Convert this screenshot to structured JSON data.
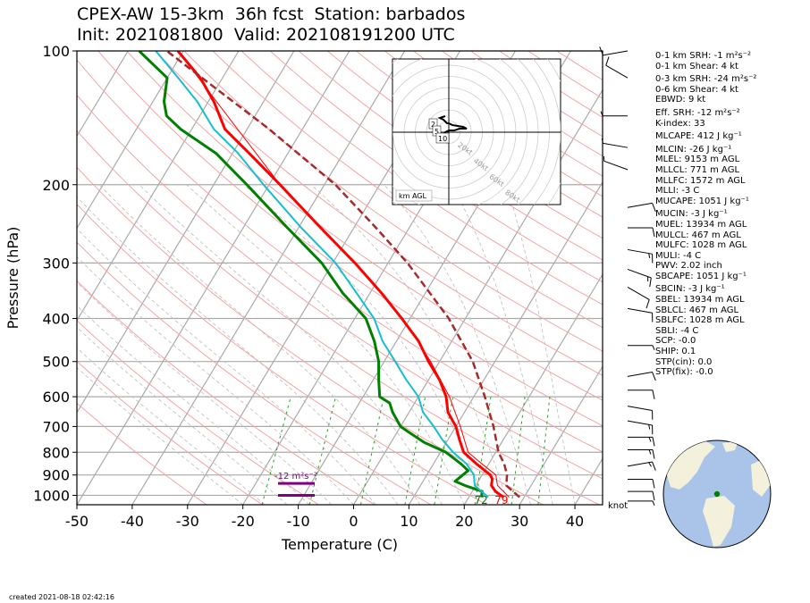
{
  "title_line1": "CPEX-AW 15-3km  36h fcst  Station: barbados",
  "title_line2": "Init: 2021081800  Valid: 202108191200 UTC",
  "created": "created 2021-08-18 02:42:16",
  "indices": [
    {
      "label": "0-1 km SRH: -1 m²s⁻²",
      "gap_before": false
    },
    {
      "label": "0-1 km Shear: 4 kt",
      "gap_before": false
    },
    {
      "label": "0-3 km SRH: -24 m²s⁻²",
      "gap_before": true
    },
    {
      "label": "0-6 km Shear: 4 kt",
      "gap_before": false
    },
    {
      "label": "EBWD: 9 kt",
      "gap_before": false
    },
    {
      "label": "Eff. SRH: -12 m²s⁻²",
      "gap_before": true
    },
    {
      "label": "K-index: 33",
      "gap_before": false
    },
    {
      "label": "MLCAPE: 412 J kg⁻¹",
      "gap_before": true
    },
    {
      "label": "MLCIN: -26 J kg⁻¹",
      "gap_before": true
    },
    {
      "label": "MLEL: 9153 m AGL",
      "gap_before": false
    },
    {
      "label": "MLLCL: 771 m AGL",
      "gap_before": false
    },
    {
      "label": "MLLFC: 1572 m AGL",
      "gap_before": false
    },
    {
      "label": "MLLI: -3 C",
      "gap_before": false
    },
    {
      "label": "MUCAPE: 1051 J kg⁻¹",
      "gap_before": false
    },
    {
      "label": "MUCIN: -3 J kg⁻¹",
      "gap_before": true
    },
    {
      "label": "MUEL: 13934 m AGL",
      "gap_before": false
    },
    {
      "label": "MULCL: 467 m AGL",
      "gap_before": false
    },
    {
      "label": "MULFC: 1028 m AGL",
      "gap_before": false
    },
    {
      "label": "MULI: -4 C",
      "gap_before": false
    },
    {
      "label": "PWV: 2.02 inch",
      "gap_before": false
    },
    {
      "label": "SBCAPE: 1051 J kg⁻¹",
      "gap_before": false
    },
    {
      "label": "SBCIN: -3 J kg⁻¹",
      "gap_before": true
    },
    {
      "label": "SBEL: 13934 m AGL",
      "gap_before": false
    },
    {
      "label": "SBLCL: 467 m AGL",
      "gap_before": false
    },
    {
      "label": "SBLFC: 1028 m AGL",
      "gap_before": false
    },
    {
      "label": "SBLI: -4 C",
      "gap_before": false
    },
    {
      "label": "SCP: -0.0",
      "gap_before": false
    },
    {
      "label": "SHIP: 0.1",
      "gap_before": false
    },
    {
      "label": "STP(cin): 0.0",
      "gap_before": false
    },
    {
      "label": "STP(fix): -0.0",
      "gap_before": false
    }
  ],
  "chart_data": [
    {
      "type": "line",
      "subtype": "skew-t log-p",
      "xlabel": "Temperature (C)",
      "ylabel": "Pressure (hPa)",
      "xlim": [
        -50,
        45
      ],
      "ylim": [
        1050,
        100
      ],
      "y_scale": "log",
      "x_ticks": [
        -50,
        -40,
        -30,
        -20,
        -10,
        0,
        10,
        20,
        30,
        40
      ],
      "y_ticks": [
        100,
        200,
        300,
        400,
        500,
        600,
        700,
        800,
        900,
        1000
      ],
      "grid": true,
      "colors": {
        "temperature": "#ff0000",
        "dewpoint": "#008000",
        "wetbulb": "#17becf",
        "parcel": "#a52a2a",
        "virtual_temperature": "#ff0000",
        "srh_bar": "#800080",
        "dry_adiabats": "#f4a4a4",
        "moist_adiabats": "#bbbbbb",
        "mixing_ratio": "#2ca02c"
      },
      "series": [
        {
          "name": "temperature",
          "points": [
            [
              1010,
              26.3
            ],
            [
              980,
              24.2
            ],
            [
              950,
              22.8
            ],
            [
              920,
              22.3
            ],
            [
              900,
              21.5
            ],
            [
              850,
              17.8
            ],
            [
              800,
              14.2
            ],
            [
              750,
              12.1
            ],
            [
              700,
              10.0
            ],
            [
              650,
              7.0
            ],
            [
              600,
              5.0
            ],
            [
              550,
              2.0
            ],
            [
              500,
              -2.0
            ],
            [
              450,
              -6.0
            ],
            [
              400,
              -11.5
            ],
            [
              350,
              -18.0
            ],
            [
              300,
              -26.0
            ],
            [
              250,
              -36.0
            ],
            [
              200,
              -48.0
            ],
            [
              170,
              -57.0
            ],
            [
              150,
              -64.0
            ],
            [
              130,
              -69.0
            ],
            [
              115,
              -74.0
            ],
            [
              100,
              -81.0
            ]
          ]
        },
        {
          "name": "virtual_temperature",
          "points": [
            [
              1010,
              27.3
            ],
            [
              950,
              23.9
            ],
            [
              900,
              22.5
            ],
            [
              850,
              18.8
            ],
            [
              800,
              15.0
            ],
            [
              700,
              10.8
            ],
            [
              600,
              5.6
            ],
            [
              500,
              -1.6
            ],
            [
              400,
              -11.3
            ],
            [
              300,
              -25.9
            ],
            [
              200,
              -48.0
            ],
            [
              100,
              -81.0
            ]
          ]
        },
        {
          "name": "dewpoint",
          "points": [
            [
              1010,
              22.3
            ],
            [
              980,
              21.8
            ],
            [
              950,
              18.0
            ],
            [
              930,
              15.8
            ],
            [
              900,
              16.5
            ],
            [
              880,
              17.0
            ],
            [
              850,
              15.0
            ],
            [
              800,
              11.0
            ],
            [
              760,
              6.0
            ],
            [
              720,
              2.0
            ],
            [
              700,
              0.0
            ],
            [
              650,
              -3.0
            ],
            [
              620,
              -4.5
            ],
            [
              600,
              -7.0
            ],
            [
              550,
              -9.0
            ],
            [
              500,
              -11.0
            ],
            [
              450,
              -14.0
            ],
            [
              400,
              -18.0
            ],
            [
              350,
              -25.0
            ],
            [
              300,
              -32.0
            ],
            [
              250,
              -42.0
            ],
            [
              200,
              -54.0
            ],
            [
              170,
              -63.0
            ],
            [
              150,
              -72.0
            ],
            [
              140,
              -76.0
            ],
            [
              130,
              -78.0
            ],
            [
              115,
              -80.0
            ],
            [
              100,
              -88.0
            ]
          ]
        },
        {
          "name": "wetbulb",
          "points": [
            [
              1010,
              23.5
            ],
            [
              950,
              19.8
            ],
            [
              900,
              18.5
            ],
            [
              850,
              16.0
            ],
            [
              800,
              12.3
            ],
            [
              750,
              9.0
            ],
            [
              700,
              6.0
            ],
            [
              650,
              2.5
            ],
            [
              600,
              0.0
            ],
            [
              550,
              -4.0
            ],
            [
              500,
              -8.0
            ],
            [
              450,
              -12.5
            ],
            [
              400,
              -16.5
            ],
            [
              350,
              -22.5
            ],
            [
              300,
              -29.5
            ],
            [
              250,
              -39.5
            ],
            [
              200,
              -51.0
            ],
            [
              170,
              -59.0
            ],
            [
              150,
              -66.0
            ],
            [
              130,
              -72.0
            ],
            [
              115,
              -78.0
            ],
            [
              100,
              -85.0
            ]
          ]
        },
        {
          "name": "parcel",
          "points": [
            [
              1010,
              29.2
            ],
            [
              950,
              25.5
            ],
            [
              900,
              24.5
            ],
            [
              850,
              22.8
            ],
            [
              800,
              20.5
            ],
            [
              700,
              16.8
            ],
            [
              600,
              12.0
            ],
            [
              500,
              6.0
            ],
            [
              400,
              -3.0
            ],
            [
              300,
              -16.5
            ],
            [
              250,
              -26.0
            ],
            [
              200,
              -38.0
            ],
            [
              150,
              -56.0
            ],
            [
              100,
              -83.0
            ]
          ]
        }
      ],
      "surface_labels": {
        "temperature": "79",
        "dewpoint": "72"
      },
      "srh_label": "-12 m²s⁻²",
      "srh_layer_hpa": [
        940,
        1000
      ],
      "wind_unit": "knot",
      "wind_barbs": [
        {
          "p": 100,
          "spd": 10,
          "dir": 260
        },
        {
          "p": 115,
          "spd": 10,
          "dir": 300
        },
        {
          "p": 140,
          "spd": 5,
          "dir": 270
        },
        {
          "p": 165,
          "spd": 5,
          "dir": 280
        },
        {
          "p": 185,
          "spd": 5,
          "dir": 290
        },
        {
          "p": 225,
          "spd": 10,
          "dir": 80
        },
        {
          "p": 250,
          "spd": 10,
          "dir": 90
        },
        {
          "p": 280,
          "spd": 15,
          "dir": 100
        },
        {
          "p": 310,
          "spd": 15,
          "dir": 110
        },
        {
          "p": 340,
          "spd": 10,
          "dir": 120
        },
        {
          "p": 380,
          "spd": 10,
          "dir": 100
        },
        {
          "p": 460,
          "spd": 5,
          "dir": 90
        },
        {
          "p": 540,
          "spd": 10,
          "dir": 80
        },
        {
          "p": 580,
          "spd": 10,
          "dir": 90
        },
        {
          "p": 630,
          "spd": 10,
          "dir": 100
        },
        {
          "p": 680,
          "spd": 15,
          "dir": 100
        },
        {
          "p": 740,
          "spd": 15,
          "dir": 90
        },
        {
          "p": 790,
          "spd": 15,
          "dir": 90
        },
        {
          "p": 860,
          "spd": 15,
          "dir": 80
        },
        {
          "p": 920,
          "spd": 10,
          "dir": 90
        },
        {
          "p": 980,
          "spd": 10,
          "dir": 90
        },
        {
          "p": 1030,
          "spd": 5,
          "dir": 90
        }
      ]
    },
    {
      "type": "line",
      "subtype": "hodograph",
      "ring_labels": [
        "20kt",
        "40kt",
        "60kt",
        "80kt"
      ],
      "ring_speeds": [
        20,
        40,
        60,
        80
      ],
      "legend": "km AGL",
      "height_labels": [
        "2",
        "5",
        "10"
      ],
      "points": [
        [
          -2,
          5
        ],
        [
          -3,
          2
        ],
        [
          -2,
          0
        ],
        [
          0,
          -1
        ],
        [
          3,
          -1
        ],
        [
          6,
          -2
        ],
        [
          10,
          -2
        ],
        [
          8,
          -3
        ],
        [
          2,
          -4
        ],
        [
          0,
          -5
        ],
        [
          -1,
          -5
        ],
        [
          -3,
          -7
        ],
        [
          -5,
          -8
        ],
        [
          -2,
          -9
        ]
      ]
    }
  ]
}
